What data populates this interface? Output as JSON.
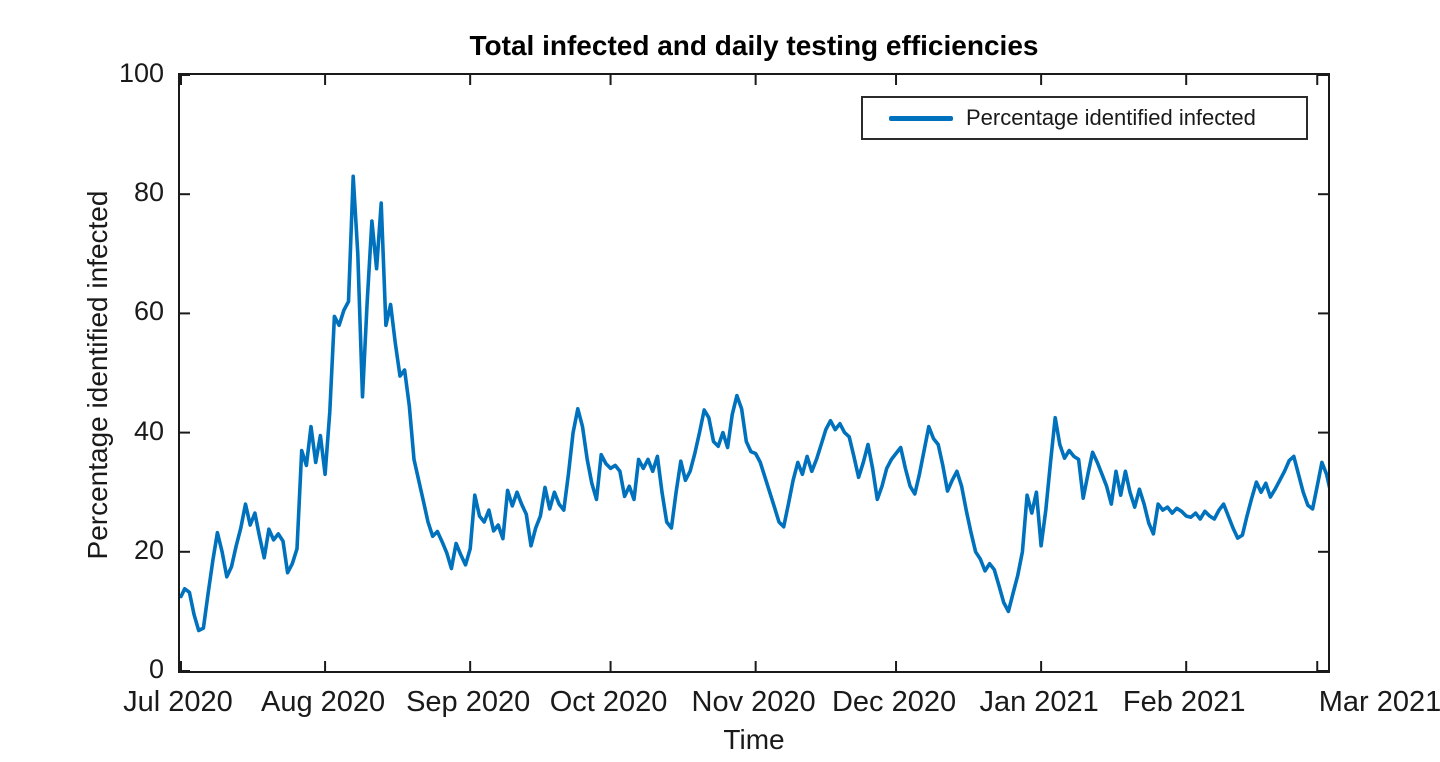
{
  "figure": {
    "background": "#ffffff",
    "axis_color": "#1a1a1a"
  },
  "chart_data": {
    "type": "line",
    "title": "Total infected and daily testing efficiencies",
    "xlabel": "Time",
    "ylabel": "Percentage identified infected",
    "ylim": [
      0,
      100
    ],
    "y_ticks": [
      0,
      20,
      40,
      60,
      80,
      100
    ],
    "x_ticks": [
      {
        "label": "Jul 2020",
        "day": 0
      },
      {
        "label": "Aug 2020",
        "day": 31
      },
      {
        "label": "Sep 2020",
        "day": 62
      },
      {
        "label": "Oct 2020",
        "day": 92
      },
      {
        "label": "Nov 2020",
        "day": 123
      },
      {
        "label": "Dec 2020",
        "day": 153
      },
      {
        "label": "Jan 2021",
        "day": 184
      },
      {
        "label": "Feb 2021",
        "day": 215
      },
      {
        "label": "Mar 2021",
        "day": 243
      }
    ],
    "x_unit": "daily samples, days since Jul 1 2020",
    "x_range_days": [
      0,
      246
    ],
    "grid": false,
    "legend_position": "top-right",
    "series": [
      {
        "name": "Percentage identified infected",
        "color": "#0072BD",
        "values": [
          12.5,
          13.8,
          13.2,
          9.5,
          6.8,
          7.2,
          13.0,
          18.5,
          23.2,
          20.0,
          15.8,
          17.5,
          21.0,
          24.0,
          28.0,
          24.5,
          26.5,
          22.5,
          19.0,
          23.8,
          22.0,
          23.0,
          21.8,
          16.5,
          18.0,
          20.5,
          37.0,
          34.5,
          41.0,
          35.0,
          39.5,
          33.0,
          43.5,
          59.5,
          58.0,
          60.5,
          62.0,
          83.0,
          70.0,
          46.0,
          62.0,
          75.5,
          67.5,
          78.5,
          58.0,
          61.5,
          55.0,
          49.5,
          50.5,
          44.5,
          35.5,
          32.0,
          28.5,
          25.0,
          22.6,
          23.4,
          21.7,
          19.8,
          17.2,
          21.4,
          19.5,
          17.8,
          20.5,
          29.5,
          26.0,
          25.0,
          27.0,
          23.5,
          24.5,
          22.2,
          30.3,
          27.7,
          30.0,
          28.0,
          26.3,
          21.0,
          24.0,
          26.0,
          30.8,
          27.2,
          30.0,
          28.0,
          27.0,
          33.0,
          40.0,
          44.0,
          41.0,
          35.5,
          31.5,
          28.8,
          36.3,
          34.8,
          34.0,
          34.5,
          33.5,
          29.3,
          31.0,
          28.8,
          35.5,
          34.0,
          35.5,
          33.5,
          36.0,
          30.0,
          25.0,
          24.0,
          30.0,
          35.2,
          32.0,
          33.5,
          36.5,
          40.0,
          43.8,
          42.5,
          38.5,
          37.7,
          40.0,
          37.5,
          43.0,
          46.2,
          44.0,
          38.5,
          36.8,
          36.5,
          35.0,
          32.5,
          30.0,
          27.5,
          25.0,
          24.2,
          28.0,
          32.0,
          35.0,
          33.0,
          36.0,
          33.5,
          35.5,
          38.0,
          40.5,
          42.0,
          40.5,
          41.5,
          40.0,
          39.3,
          36.0,
          32.5,
          35.0,
          38.0,
          34.0,
          28.8,
          31.0,
          34.0,
          35.5,
          36.5,
          37.5,
          34.0,
          31.0,
          29.7,
          33.0,
          37.0,
          41.0,
          39.0,
          38.0,
          34.5,
          30.2,
          32.0,
          33.5,
          31.0,
          27.0,
          23.3,
          20.0,
          18.8,
          16.8,
          18.0,
          17.0,
          14.3,
          11.5,
          10.0,
          13.0,
          16.0,
          20.0,
          29.5,
          26.5,
          30.0,
          21.0,
          27.0,
          35.0,
          42.5,
          38.0,
          35.7,
          37.0,
          36.0,
          35.5,
          29.0,
          33.0,
          36.7,
          35.0,
          33.0,
          31.0,
          28.0,
          33.5,
          29.5,
          33.5,
          30.0,
          27.5,
          30.5,
          28.0,
          24.8,
          23.0,
          28.0,
          27.0,
          27.5,
          26.5,
          27.3,
          26.8,
          26.0,
          25.8,
          26.5,
          25.5,
          26.8,
          26.0,
          25.5,
          27.0,
          28.0,
          26.0,
          24.0,
          22.3,
          22.8,
          26.0,
          29.0,
          31.7,
          30.0,
          31.5,
          29.2,
          30.5,
          32.0,
          33.5,
          35.3,
          36.0,
          33.0,
          30.0,
          27.8,
          27.2,
          31.0,
          35.0,
          33.0,
          29.5
        ]
      }
    ]
  }
}
